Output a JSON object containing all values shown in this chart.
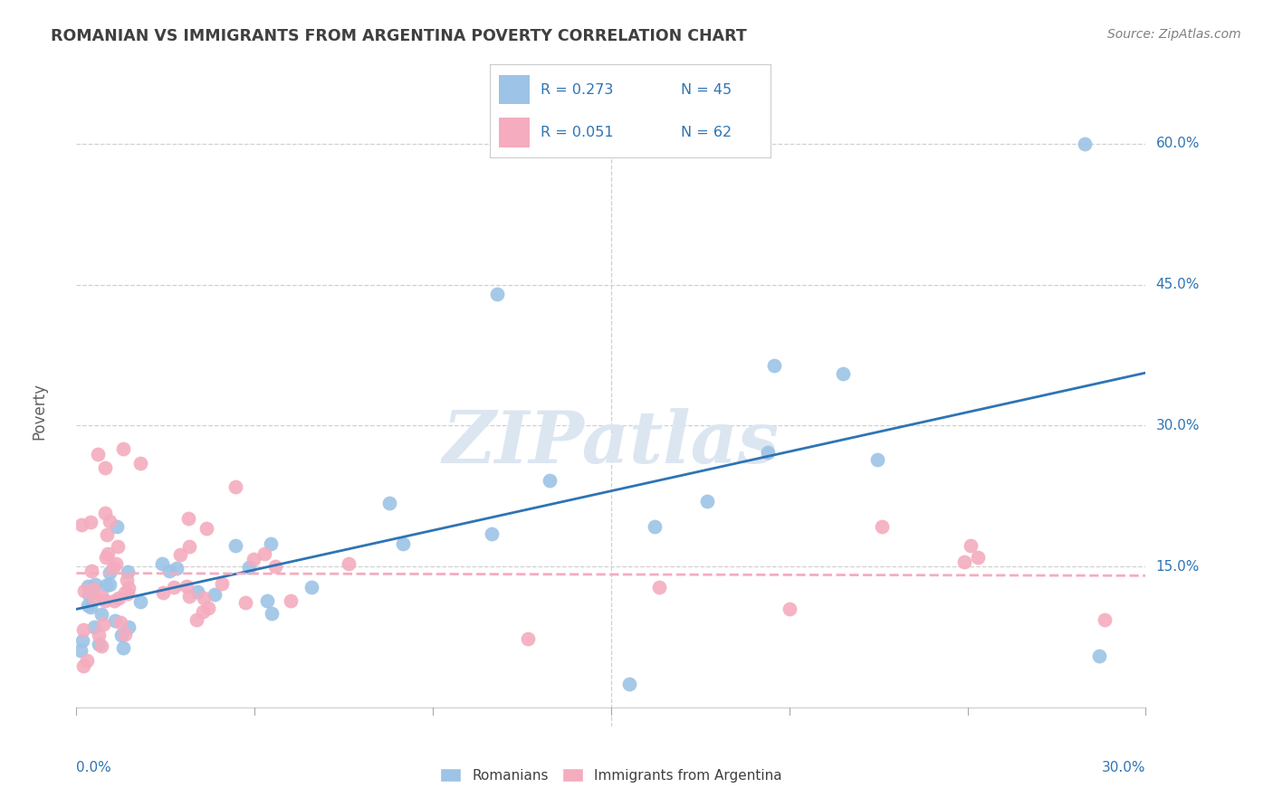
{
  "title": "ROMANIAN VS IMMIGRANTS FROM ARGENTINA POVERTY CORRELATION CHART",
  "source": "Source: ZipAtlas.com",
  "ylabel": "Poverty",
  "xlim": [
    0.0,
    0.3
  ],
  "ylim": [
    -0.02,
    0.65
  ],
  "ytick_vals": [
    0.0,
    0.15,
    0.3,
    0.45,
    0.6
  ],
  "ytick_labels": [
    "",
    "15.0%",
    "30.0%",
    "45.0%",
    "60.0%"
  ],
  "xtick_left_label": "0.0%",
  "xtick_right_label": "30.0%",
  "legend_r1": "R = 0.273",
  "legend_n1": "N = 45",
  "legend_r2": "R = 0.051",
  "legend_n2": "N = 62",
  "blue_color": "#9dc3e6",
  "pink_color": "#f4acbe",
  "blue_line_color": "#2e74b5",
  "pink_line_color": "#f4acbe",
  "legend_text_color": "#2e74b5",
  "title_color": "#404040",
  "source_color": "#808080",
  "grid_color": "#d0d0d0",
  "watermark": "ZIPatlas",
  "watermark_color": "#dce6f1",
  "axis_label_color": "#2e74b5",
  "bottom_legend_color": "#404040"
}
